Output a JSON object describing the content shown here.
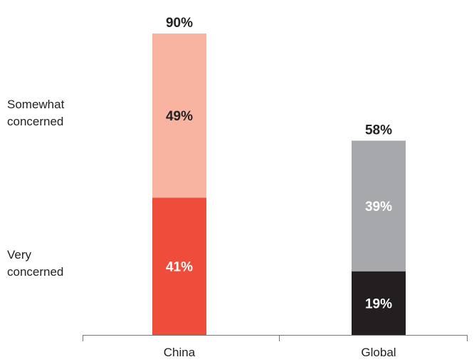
{
  "chart_data": {
    "type": "bar",
    "stacked": true,
    "categories": [
      "China",
      "Global"
    ],
    "series": [
      {
        "name": "Very concerned",
        "values": [
          41,
          19
        ],
        "value_labels": [
          "41%",
          "19%"
        ]
      },
      {
        "name": "Somewhat concerned",
        "values": [
          49,
          39
        ],
        "value_labels": [
          "49%",
          "39%"
        ]
      }
    ],
    "totals": [
      90,
      58
    ],
    "total_labels": [
      "90%",
      "58%"
    ],
    "legend": {
      "placement": "left",
      "very": [
        "Very",
        "concerned"
      ],
      "somewhat": [
        "Somewhat",
        "concerned"
      ]
    },
    "colors": [
      {
        "very": "#ef4d3c",
        "somewhat": "#f8b4a1",
        "very_text": "#ffffff",
        "somewhat_text": "#222222"
      },
      {
        "very": "#231f20",
        "somewhat": "#a7a8ab",
        "very_text": "#ffffff",
        "somewhat_text": "#ffffff"
      }
    ],
    "axis_color": "#777777",
    "ylim": [
      0,
      100
    ],
    "grid": false,
    "title": "",
    "xlabel": "",
    "ylabel": ""
  }
}
